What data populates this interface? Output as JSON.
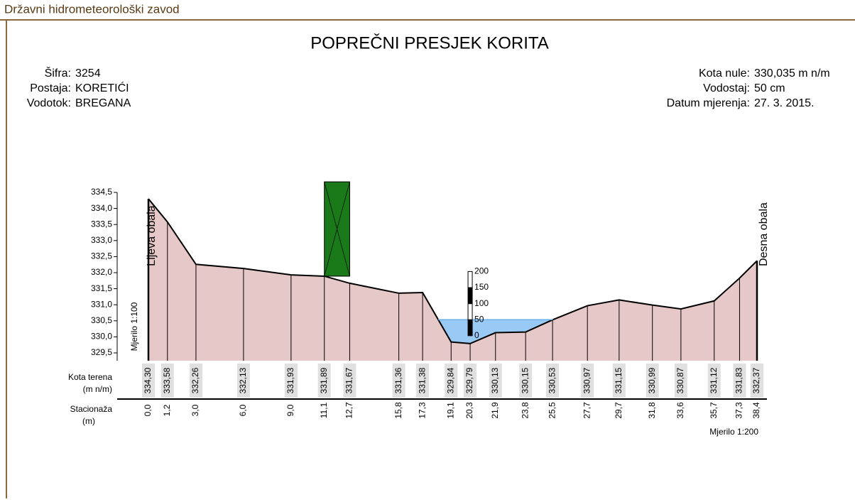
{
  "header": "Državni hidrometeorološki zavod",
  "chart_data": {
    "type": "cross-section",
    "title": "POPREČNI PRESJEK KORITA",
    "info_left": [
      [
        "Šifra:",
        "3254"
      ],
      [
        "Postaja:",
        "KORETIĆI"
      ],
      [
        "Vodotok:",
        "BREGANA"
      ]
    ],
    "info_right": [
      [
        "Kota nule:",
        "330,035 m n/m"
      ],
      [
        "Vodostaj:",
        "50 cm"
      ],
      [
        "Datum mjerenja:",
        "27. 3. 2015."
      ]
    ],
    "left_bank": "Lijeva obala",
    "right_bank": "Desna obala",
    "vertical_scale": "Mjerilo 1:100",
    "horizontal_scale": "Mjerilo 1:200",
    "row_label_elevation": [
      "Kota terena",
      "(m n/m)"
    ],
    "row_label_station": [
      "Stacionaža",
      "(m)"
    ],
    "x": [
      0.0,
      1.2,
      3.0,
      6.0,
      9.0,
      11.1,
      12.7,
      15.8,
      17.3,
      19.1,
      20.3,
      21.9,
      23.8,
      25.5,
      27.7,
      29.7,
      31.8,
      33.6,
      35.7,
      37.3,
      38.4
    ],
    "x_labels": [
      "0,0",
      "1,2",
      "3,0",
      "6,0",
      "9,0",
      "11,1",
      "12,7",
      "15,8",
      "17,3",
      "19,1",
      "20,3",
      "21,9",
      "23,8",
      "25,5",
      "27,7",
      "29,7",
      "31,8",
      "33,6",
      "35,7",
      "37,3",
      "38,4"
    ],
    "values": [
      334.3,
      333.58,
      332.26,
      332.13,
      331.93,
      331.89,
      331.67,
      331.36,
      331.38,
      329.84,
      329.79,
      330.13,
      330.15,
      330.53,
      330.97,
      331.15,
      330.99,
      330.87,
      331.12,
      331.83,
      332.37
    ],
    "value_labels": [
      "334,30",
      "333,58",
      "332,26",
      "332,13",
      "331,93",
      "331,89",
      "331,67",
      "331,36",
      "331,38",
      "329,84",
      "329,79",
      "330,13",
      "330,15",
      "330,53",
      "330,97",
      "331,15",
      "330,99",
      "330,87",
      "331,12",
      "331,83",
      "332,37"
    ],
    "xlim": [
      0,
      38.4
    ],
    "ylim": [
      329.5,
      334.5
    ],
    "yticks": [
      {
        "value": 329.5,
        "label": "329,5"
      },
      {
        "value": 330.0,
        "label": "330,0"
      },
      {
        "value": 330.5,
        "label": "330,5"
      },
      {
        "value": 331.0,
        "label": "331,0"
      },
      {
        "value": 331.5,
        "label": "331,5"
      },
      {
        "value": 332.0,
        "label": "332,0"
      },
      {
        "value": 332.5,
        "label": "332,5"
      },
      {
        "value": 333.0,
        "label": "333,0"
      },
      {
        "value": 333.5,
        "label": "333,5"
      },
      {
        "value": 334.0,
        "label": "334,0"
      },
      {
        "value": 334.5,
        "label": "334,5"
      }
    ],
    "water_level": 330.535,
    "water_color": "#99c9f5",
    "terrain_color": "#e6c8c8",
    "gauge_zero": 330.035,
    "gauge_x": 20.3,
    "gauge_ticks": [
      0,
      50,
      100,
      150,
      200
    ],
    "structure": {
      "x": [
        11.1,
        12.7
      ],
      "top": 334.83,
      "color": "#1a7a1a"
    }
  }
}
